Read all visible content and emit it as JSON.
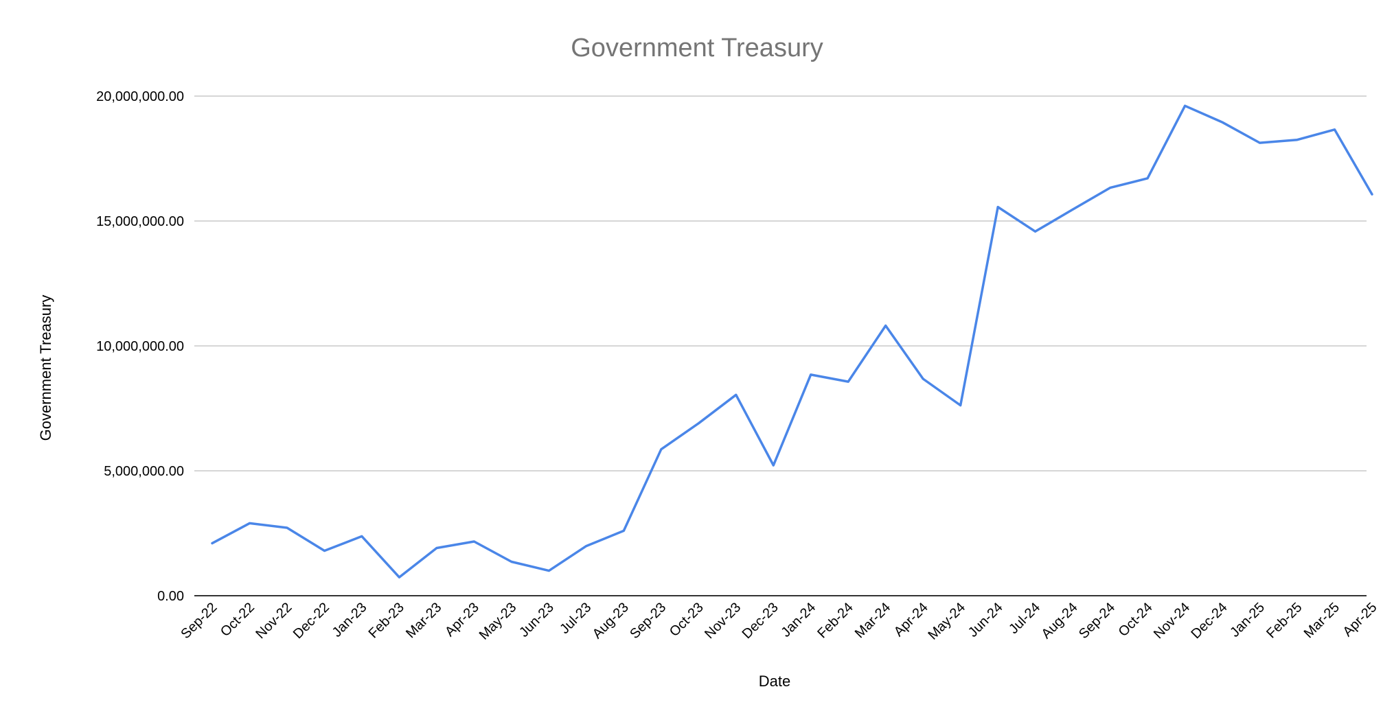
{
  "chart_data": {
    "type": "line",
    "title": "Government Treasury",
    "xlabel": "Date",
    "ylabel": "Government Treasury",
    "categories": [
      "Sep-22",
      "Oct-22",
      "Nov-22",
      "Dec-22",
      "Jan-23",
      "Feb-23",
      "Mar-23",
      "Apr-23",
      "May-23",
      "Jun-23",
      "Jul-23",
      "Aug-23",
      "Sep-23",
      "Oct-23",
      "Nov-23",
      "Dec-23",
      "Jan-24",
      "Feb-24",
      "Mar-24",
      "Apr-24",
      "May-24",
      "Jun-24",
      "Jul-24",
      "Aug-24",
      "Sep-24",
      "Oct-24",
      "Nov-24",
      "Dec-24",
      "Jan-25",
      "Feb-25",
      "Mar-25",
      "Apr-25"
    ],
    "series": [
      {
        "values": [
          2100000,
          2900000,
          2720000,
          1800000,
          2380000,
          740000,
          1910000,
          2170000,
          1360000,
          1000000,
          1990000,
          2600000,
          5860000,
          6900000,
          8040000,
          5220000,
          8850000,
          8570000,
          10810000,
          8680000,
          7620000,
          15560000,
          14580000,
          15460000,
          16330000,
          16710000,
          19610000,
          18950000,
          18130000,
          18250000,
          18660000,
          16070000
        ],
        "color": "#4a86e8"
      }
    ],
    "ylim": [
      0,
      20000000
    ],
    "yticks": [
      "0.00",
      "5,000,000.00",
      "10,000,000.00",
      "15,000,000.00",
      "20,000,000.00"
    ],
    "ytick_values": [
      0,
      5000000,
      10000000,
      15000000,
      20000000
    ],
    "grid": true,
    "legend": "none"
  }
}
